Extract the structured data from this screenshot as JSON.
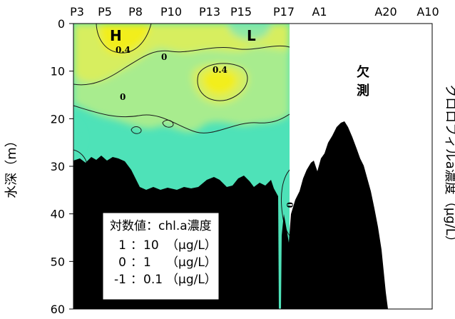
{
  "chart_data": {
    "type": "heatmap",
    "title": "",
    "ylabel": "水深（m）",
    "y2label": "クロロフィルa濃度（μg/L）",
    "ylim": [
      0,
      60
    ],
    "y_inverted": true,
    "y_ticks": [
      "0",
      "10",
      "20",
      "30",
      "40",
      "50",
      "60"
    ],
    "stations": [
      "P3",
      "P5",
      "P8",
      "P10",
      "P13",
      "P15",
      "P17",
      "A1",
      "A20",
      "A10"
    ],
    "contour_levels": [
      {
        "label": "0.4",
        "value": 0.4
      },
      {
        "label": "0",
        "value": 0
      }
    ],
    "extremes": [
      {
        "label": "H",
        "station_near": "P5–P8",
        "depth_m": 2
      },
      {
        "label": "L",
        "station_near": "P15",
        "depth_m": 2
      }
    ],
    "missing_label": "欠\n測",
    "legend_title": "対数値：chl.a濃度",
    "legend_rows": [
      {
        "log": "1",
        "value": "10",
        "unit": "（μg/L）"
      },
      {
        "log": "0",
        "value": "1",
        "unit": "（μg/L）"
      },
      {
        "log": "-1",
        "value": "0.1",
        "unit": "（μg/L）"
      }
    ],
    "colors": {
      "high": "#f2ee1e",
      "mid_high": "#d7ee5e",
      "mid": "#a8ec8e",
      "low": "#4ee2b8",
      "seabed": "#000000",
      "missing": "#ffffff"
    }
  }
}
